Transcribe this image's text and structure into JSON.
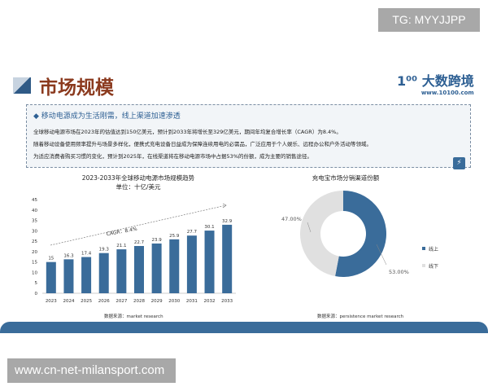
{
  "watermark_top": "TG: MYYJJPP",
  "watermark_bottom": "www.cn-net-milansport.com",
  "slide": {
    "title": "市场规模",
    "logo": {
      "name": "大数跨境",
      "url": "www.10100.com"
    },
    "highlight": {
      "heading": "移动电源成为生活刚需，线上渠道加速渗透",
      "paragraphs": [
        "全球移动电源市场在2023年的估值达到150亿美元，预计到2033年将增长至329亿美元，期间年均复合增长率（CAGR）为8.4%。",
        "随着移动设备使用频率提升与场景多样化，便携式充电设备日益成为保障连续用电的必需品，广泛应用于个人娱乐、远程办公和户外活动等领域。",
        "为适应消费者购买习惯的变化，预计到2025年，在线渠道将在移动电源市场中占据53%的份额，成为主要的销售途径。"
      ]
    },
    "colors": {
      "accent": "#3a6c9a",
      "title": "#8b3a1e",
      "light": "#e0e0e0"
    }
  },
  "chart_data": [
    {
      "type": "bar",
      "title": "2023-2033年全球移动电源市场规模趋势",
      "subtitle": "单位：十亿/美元",
      "categories": [
        "2023",
        "2024",
        "2025",
        "2026",
        "2027",
        "2028",
        "2029",
        "2030",
        "2031",
        "2032",
        "2033"
      ],
      "values": [
        15,
        16.3,
        17.4,
        19.3,
        21.1,
        22.7,
        23.9,
        25.9,
        27.7,
        30.1,
        32.9
      ],
      "yticks": [
        0,
        5,
        10,
        15,
        20,
        25,
        30,
        35,
        40,
        45
      ],
      "ylim": [
        0,
        45
      ],
      "annotation": "CAGR：8.4%",
      "source": "数据来源：market research",
      "grid": false
    },
    {
      "type": "pie",
      "title": "充电宝市场分销渠道份额",
      "donut": true,
      "slices": [
        {
          "name": "线上",
          "value": 53,
          "label": "53.00%",
          "color": "#3a6c9a"
        },
        {
          "name": "线下",
          "value": 47,
          "label": "47.00%",
          "color": "#e0e0e0"
        }
      ],
      "legend": "right",
      "source": "数据来源：persistence market research"
    }
  ]
}
